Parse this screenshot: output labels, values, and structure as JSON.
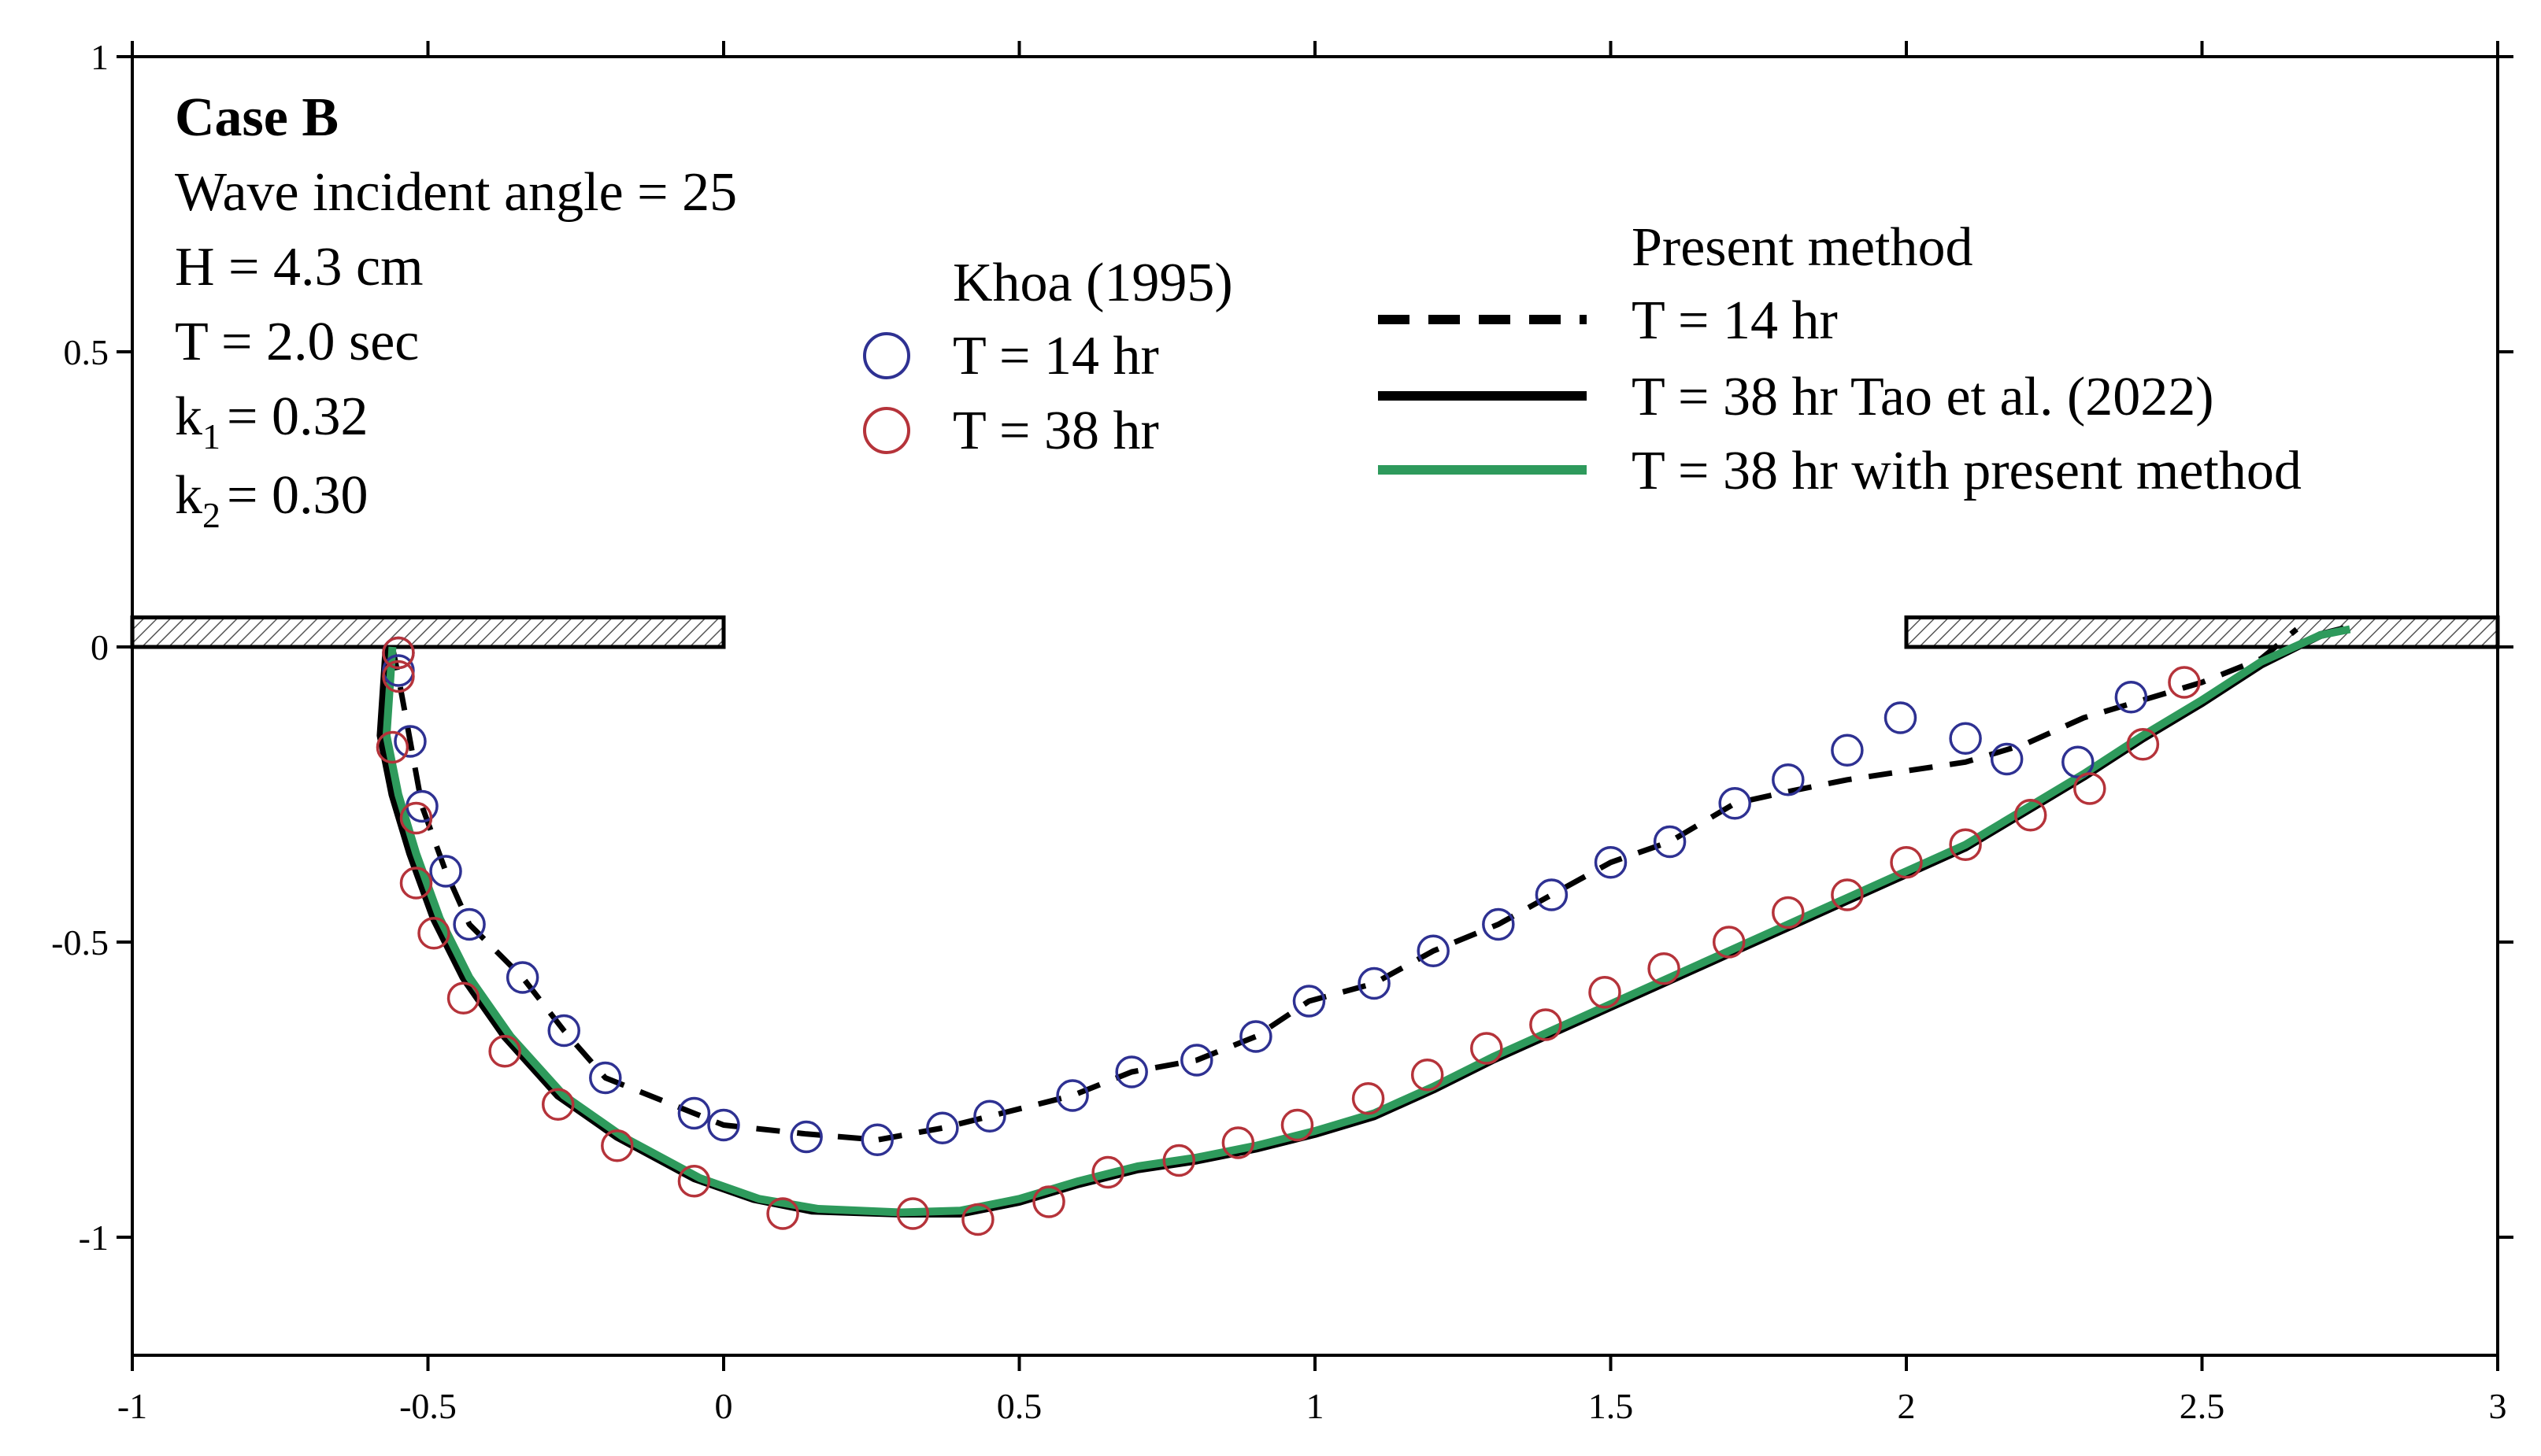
{
  "chart_data": {
    "type": "line",
    "xlim": [
      -1,
      3
    ],
    "ylim": [
      -1.2,
      1
    ],
    "x_ticks": [
      "-1",
      "-0.5",
      "0",
      "0.5",
      "1",
      "1.5",
      "2",
      "2.5",
      "3"
    ],
    "y_ticks": [
      "1",
      "0.5",
      "0",
      "-0.5",
      "-1"
    ],
    "grid": false,
    "annotations": {
      "case": "Case B",
      "angle": "Wave incident angle = 25",
      "height": "H = 4.3 cm",
      "period": "T = 2.0 sec",
      "k1_prefix": "k",
      "k1_sub": "1",
      "k1_value": "= 0.32",
      "k2_prefix": "k",
      "k2_sub": "2",
      "k2_value": "= 0.30"
    },
    "legend": {
      "khoa_title": "Khoa (1995)",
      "khoa_14": "T = 14 hr",
      "khoa_38": "T = 38 hr",
      "present_title": "Present method",
      "present_14": "T = 14 hr",
      "tao_38": "T = 38 hr  Tao et al. (2022)",
      "present_38": "T = 38 hr  with present method"
    },
    "structures": [
      {
        "x0": -1.0,
        "x1": 0.0,
        "y0": 0.0,
        "y1": 0.05
      },
      {
        "x0": 2.0,
        "x1": 3.0,
        "y0": 0.0,
        "y1": 0.05
      }
    ],
    "series": [
      {
        "name": "T = 14 hr",
        "kind": "points",
        "color": "#2e3192",
        "points": [
          [
            -0.55,
            -0.01
          ],
          [
            -0.55,
            -0.04
          ],
          [
            -0.53,
            -0.16
          ],
          [
            -0.51,
            -0.27
          ],
          [
            -0.47,
            -0.38
          ],
          [
            -0.43,
            -0.47
          ],
          [
            -0.34,
            -0.56
          ],
          [
            -0.27,
            -0.65
          ],
          [
            -0.2,
            -0.73
          ],
          [
            -0.05,
            -0.79
          ],
          [
            0.0,
            -0.81
          ],
          [
            0.14,
            -0.83
          ],
          [
            0.26,
            -0.835
          ],
          [
            0.37,
            -0.815
          ],
          [
            0.45,
            -0.795
          ],
          [
            0.59,
            -0.76
          ],
          [
            0.69,
            -0.72
          ],
          [
            0.8,
            -0.7
          ],
          [
            0.9,
            -0.66
          ],
          [
            0.99,
            -0.6
          ],
          [
            1.1,
            -0.57
          ],
          [
            1.2,
            -0.515
          ],
          [
            1.31,
            -0.47
          ],
          [
            1.4,
            -0.42
          ],
          [
            1.5,
            -0.365
          ],
          [
            1.6,
            -0.33
          ],
          [
            1.71,
            -0.265
          ],
          [
            1.8,
            -0.225
          ],
          [
            1.9,
            -0.175
          ],
          [
            1.99,
            -0.12
          ],
          [
            2.1,
            -0.155
          ],
          [
            2.17,
            -0.19
          ],
          [
            2.29,
            -0.195
          ],
          [
            2.38,
            -0.085
          ]
        ]
      },
      {
        "name": "T = 38 hr",
        "kind": "points",
        "color": "#b5333a",
        "points": [
          [
            -0.55,
            -0.01
          ],
          [
            -0.55,
            -0.05
          ],
          [
            -0.56,
            -0.17
          ],
          [
            -0.52,
            -0.29
          ],
          [
            -0.52,
            -0.4
          ],
          [
            -0.49,
            -0.485
          ],
          [
            -0.44,
            -0.595
          ],
          [
            -0.37,
            -0.685
          ],
          [
            -0.28,
            -0.775
          ],
          [
            -0.18,
            -0.845
          ],
          [
            -0.05,
            -0.905
          ],
          [
            0.1,
            -0.96
          ],
          [
            0.32,
            -0.96
          ],
          [
            0.43,
            -0.97
          ],
          [
            0.55,
            -0.94
          ],
          [
            0.65,
            -0.89
          ],
          [
            0.77,
            -0.87
          ],
          [
            0.87,
            -0.84
          ],
          [
            0.97,
            -0.81
          ],
          [
            1.09,
            -0.765
          ],
          [
            1.19,
            -0.725
          ],
          [
            1.29,
            -0.68
          ],
          [
            1.39,
            -0.64
          ],
          [
            1.49,
            -0.585
          ],
          [
            1.59,
            -0.545
          ],
          [
            1.7,
            -0.5
          ],
          [
            1.8,
            -0.45
          ],
          [
            1.9,
            -0.42
          ],
          [
            2.0,
            -0.365
          ],
          [
            2.1,
            -0.335
          ],
          [
            2.21,
            -0.285
          ],
          [
            2.31,
            -0.24
          ],
          [
            2.4,
            -0.165
          ],
          [
            2.47,
            -0.06
          ]
        ]
      },
      {
        "name": "T = 14 hr",
        "kind": "line",
        "style": "dashed",
        "color": "#000000",
        "points": [
          [
            -0.56,
            0.0
          ],
          [
            -0.55,
            -0.05
          ],
          [
            -0.53,
            -0.16
          ],
          [
            -0.51,
            -0.27
          ],
          [
            -0.47,
            -0.38
          ],
          [
            -0.43,
            -0.47
          ],
          [
            -0.34,
            -0.56
          ],
          [
            -0.27,
            -0.65
          ],
          [
            -0.2,
            -0.73
          ],
          [
            -0.05,
            -0.79
          ],
          [
            0.0,
            -0.81
          ],
          [
            0.14,
            -0.825
          ],
          [
            0.26,
            -0.835
          ],
          [
            0.37,
            -0.815
          ],
          [
            0.45,
            -0.795
          ],
          [
            0.59,
            -0.76
          ],
          [
            0.69,
            -0.72
          ],
          [
            0.8,
            -0.7
          ],
          [
            0.9,
            -0.66
          ],
          [
            0.99,
            -0.6
          ],
          [
            1.1,
            -0.57
          ],
          [
            1.2,
            -0.515
          ],
          [
            1.31,
            -0.47
          ],
          [
            1.4,
            -0.42
          ],
          [
            1.5,
            -0.365
          ],
          [
            1.6,
            -0.33
          ],
          [
            1.71,
            -0.265
          ],
          [
            1.8,
            -0.245
          ],
          [
            1.9,
            -0.225
          ],
          [
            2.0,
            -0.21
          ],
          [
            2.1,
            -0.195
          ],
          [
            2.2,
            -0.165
          ],
          [
            2.3,
            -0.12
          ],
          [
            2.4,
            -0.09
          ],
          [
            2.5,
            -0.06
          ],
          [
            2.6,
            -0.02
          ],
          [
            2.66,
            0.03
          ]
        ]
      },
      {
        "name": "T = 38 hr  Tao et al. (2022)",
        "kind": "line",
        "style": "solid",
        "color": "#000000",
        "points": [
          [
            -0.57,
            0.0
          ],
          [
            -0.58,
            -0.15
          ],
          [
            -0.56,
            -0.25
          ],
          [
            -0.53,
            -0.35
          ],
          [
            -0.49,
            -0.46
          ],
          [
            -0.44,
            -0.56
          ],
          [
            -0.37,
            -0.66
          ],
          [
            -0.28,
            -0.76
          ],
          [
            -0.18,
            -0.83
          ],
          [
            -0.05,
            -0.9
          ],
          [
            0.05,
            -0.935
          ],
          [
            0.15,
            -0.955
          ],
          [
            0.3,
            -0.96
          ],
          [
            0.4,
            -0.96
          ],
          [
            0.5,
            -0.94
          ],
          [
            0.6,
            -0.91
          ],
          [
            0.7,
            -0.885
          ],
          [
            0.8,
            -0.87
          ],
          [
            0.9,
            -0.85
          ],
          [
            1.0,
            -0.825
          ],
          [
            1.1,
            -0.795
          ],
          [
            1.2,
            -0.75
          ],
          [
            1.3,
            -0.7
          ],
          [
            1.4,
            -0.655
          ],
          [
            1.5,
            -0.61
          ],
          [
            1.6,
            -0.565
          ],
          [
            1.7,
            -0.52
          ],
          [
            1.8,
            -0.475
          ],
          [
            1.9,
            -0.43
          ],
          [
            2.0,
            -0.385
          ],
          [
            2.1,
            -0.34
          ],
          [
            2.2,
            -0.28
          ],
          [
            2.3,
            -0.22
          ],
          [
            2.4,
            -0.155
          ],
          [
            2.5,
            -0.095
          ],
          [
            2.6,
            -0.03
          ],
          [
            2.7,
            0.02
          ],
          [
            2.74,
            0.03
          ]
        ]
      },
      {
        "name": "T = 38 hr  with present method",
        "kind": "line",
        "style": "solid",
        "color": "#2e9a5c",
        "points": [
          [
            -0.56,
            0.0
          ],
          [
            -0.57,
            -0.15
          ],
          [
            -0.55,
            -0.25
          ],
          [
            -0.52,
            -0.35
          ],
          [
            -0.48,
            -0.46
          ],
          [
            -0.43,
            -0.56
          ],
          [
            -0.36,
            -0.66
          ],
          [
            -0.27,
            -0.76
          ],
          [
            -0.17,
            -0.83
          ],
          [
            -0.04,
            -0.9
          ],
          [
            0.06,
            -0.935
          ],
          [
            0.16,
            -0.952
          ],
          [
            0.3,
            -0.958
          ],
          [
            0.4,
            -0.955
          ],
          [
            0.5,
            -0.935
          ],
          [
            0.6,
            -0.905
          ],
          [
            0.7,
            -0.88
          ],
          [
            0.8,
            -0.865
          ],
          [
            0.9,
            -0.845
          ],
          [
            1.0,
            -0.82
          ],
          [
            1.1,
            -0.79
          ],
          [
            1.2,
            -0.745
          ],
          [
            1.3,
            -0.695
          ],
          [
            1.4,
            -0.65
          ],
          [
            1.5,
            -0.605
          ],
          [
            1.6,
            -0.56
          ],
          [
            1.7,
            -0.515
          ],
          [
            1.8,
            -0.47
          ],
          [
            1.9,
            -0.425
          ],
          [
            2.0,
            -0.38
          ],
          [
            2.1,
            -0.335
          ],
          [
            2.2,
            -0.275
          ],
          [
            2.3,
            -0.215
          ],
          [
            2.4,
            -0.15
          ],
          [
            2.5,
            -0.09
          ],
          [
            2.6,
            -0.025
          ],
          [
            2.7,
            0.02
          ],
          [
            2.75,
            0.03
          ]
        ]
      }
    ]
  }
}
